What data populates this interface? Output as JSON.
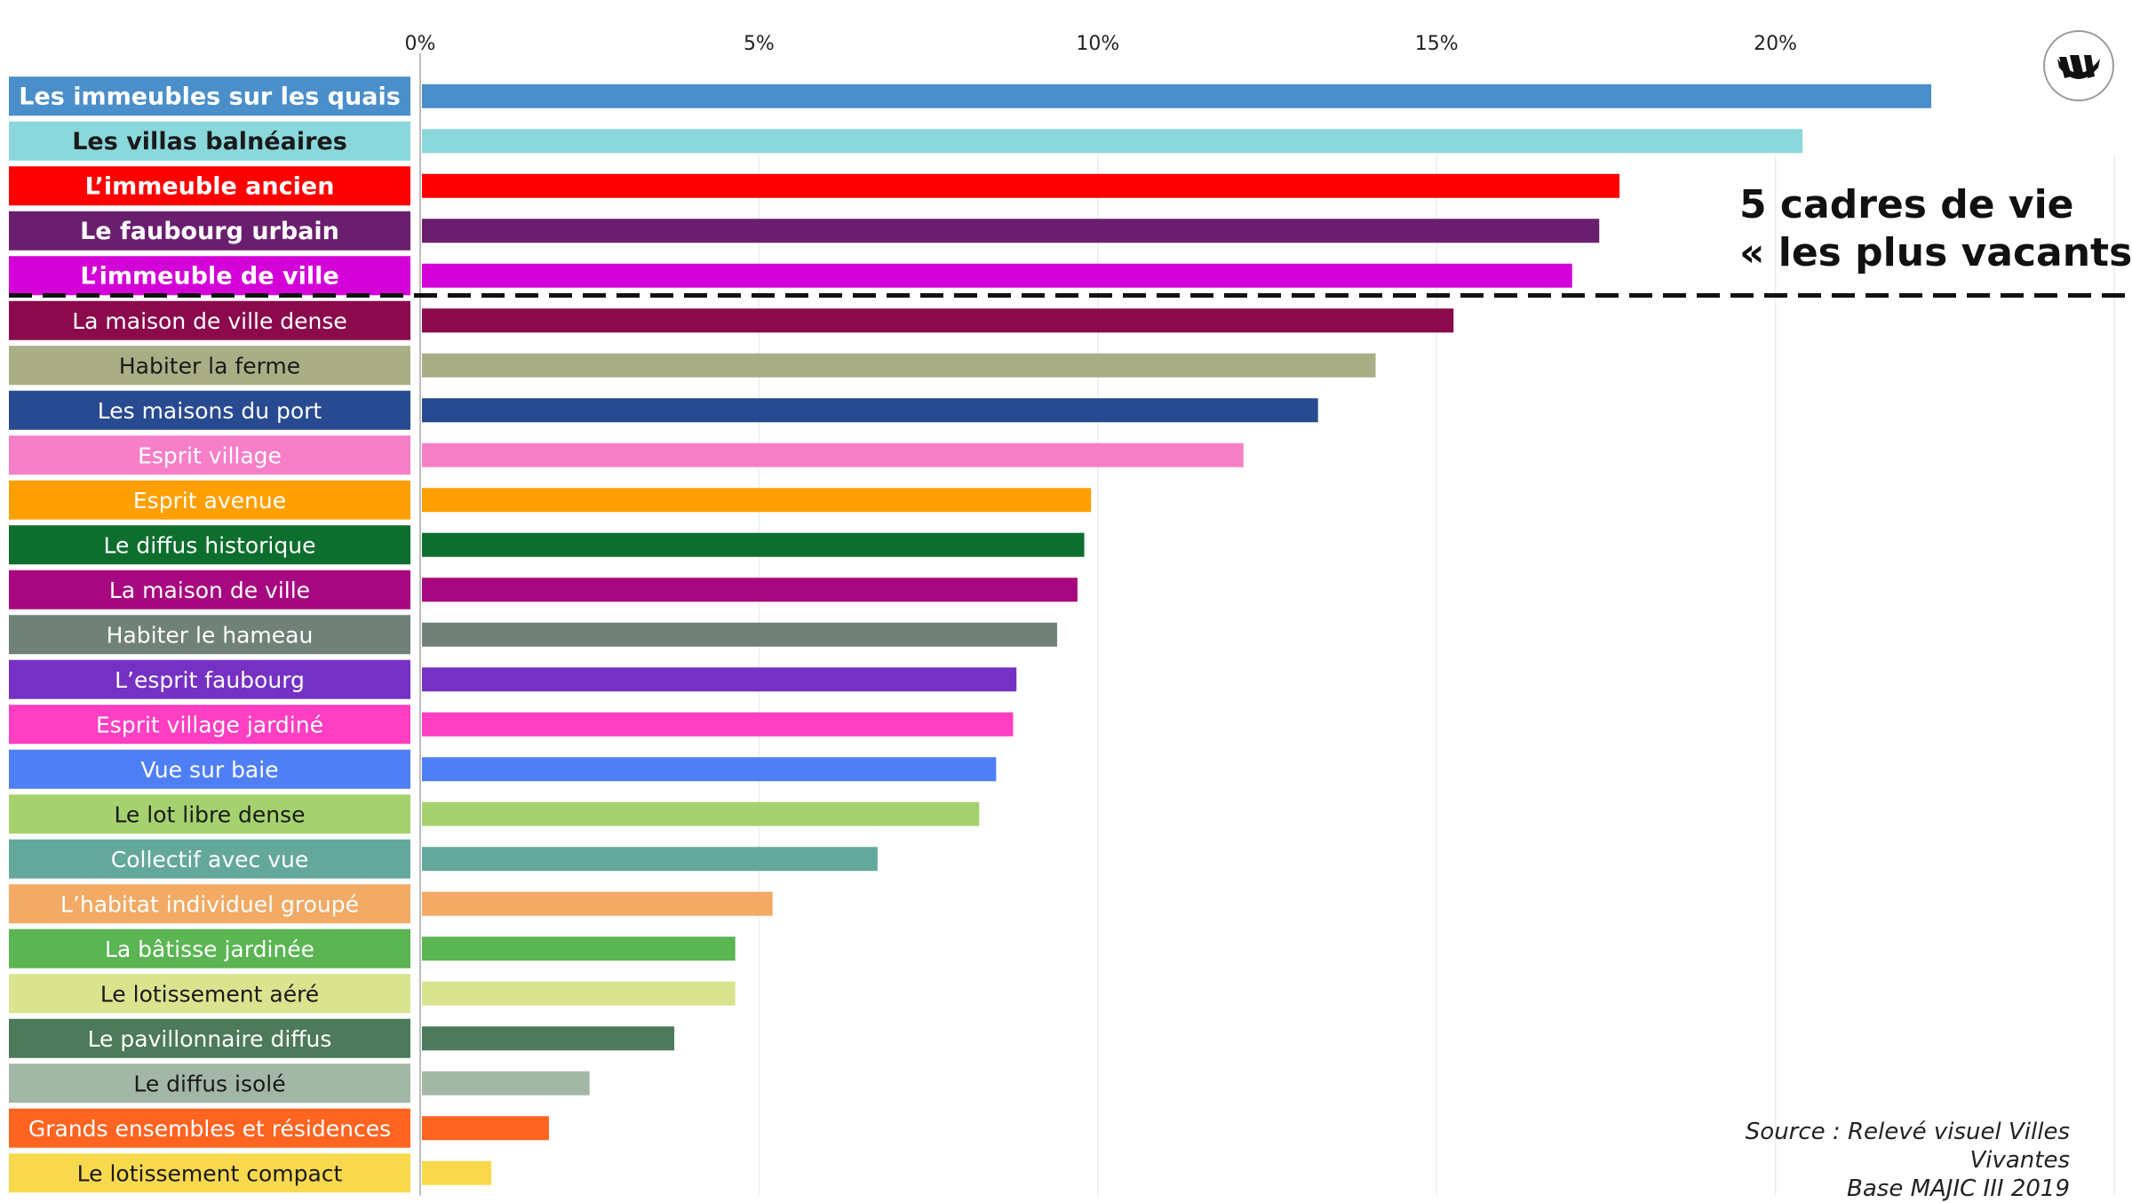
{
  "chart_data": {
    "type": "bar",
    "orientation": "horizontal",
    "x_ticks": [
      "0%",
      "5%",
      "10%",
      "15%",
      "20%"
    ],
    "xlim": [
      0,
      25
    ],
    "grid": true,
    "categories": [
      "Les immeubles sur les quais",
      "Les villas balnéaires",
      "L’immeuble ancien",
      "Le faubourg urbain",
      "L’immeuble de ville",
      "La maison de ville dense",
      "Habiter la ferme",
      "Les maisons du port",
      "Esprit village",
      "Esprit avenue",
      "Le diffus historique",
      "La maison de ville",
      "Habiter le hameau",
      "L’esprit faubourg",
      "Esprit village jardiné",
      "Vue sur baie",
      "Le lot libre dense",
      "Collectif avec vue",
      "L’habitat individuel groupé",
      "La bâtisse jardinée",
      "Le lotissement aéré",
      "Le pavillonnaire diffus",
      "Le diffus isolé",
      "Grands ensembles et résidences",
      "Le lotissement compact"
    ],
    "values": [
      22.3,
      20.4,
      17.7,
      17.4,
      17.0,
      15.25,
      14.1,
      13.25,
      12.15,
      9.9,
      9.8,
      9.7,
      9.4,
      8.8,
      8.75,
      8.5,
      8.25,
      6.75,
      5.2,
      4.65,
      4.65,
      3.75,
      2.5,
      1.9,
      1.05
    ],
    "colors": [
      "#4A8FC9",
      "#8AD8DC",
      "#FF0000",
      "#6A1F6E",
      "#D400D8",
      "#8B0A4C",
      "#A9AE86",
      "#284A90",
      "#F77FC8",
      "#FFA000",
      "#0D6E2E",
      "#A8087F",
      "#708178",
      "#7531C4",
      "#FF3EC2",
      "#4F7FF5",
      "#A5D26E",
      "#64A89C",
      "#F2AA65",
      "#5AB552",
      "#DAE48F",
      "#4C7A5A",
      "#A3B7A7",
      "#FF6421",
      "#F8D94E"
    ],
    "label_text_colors": [
      "#ffffff",
      "#1a1a1a",
      "#ffffff",
      "#ffffff",
      "#ffffff",
      "#ffffff",
      "#1a1a1a",
      "#ffffff",
      "#ffffff",
      "#ffffff",
      "#ffffff",
      "#ffffff",
      "#ffffff",
      "#ffffff",
      "#ffffff",
      "#ffffff",
      "#1a1a1a",
      "#ffffff",
      "#ffffff",
      "#ffffff",
      "#1a1a1a",
      "#ffffff",
      "#1a1a1a",
      "#ffffff",
      "#1a1a1a"
    ],
    "top_group_size": 5,
    "annotation": [
      "5 cadres de vie",
      "« les plus vacants »"
    ],
    "source": [
      "Source : Relevé visuel Villes",
      "Vivantes",
      "Base MAJIC III 2019"
    ]
  },
  "logo_icon": "villes-vivantes-logo-icon"
}
